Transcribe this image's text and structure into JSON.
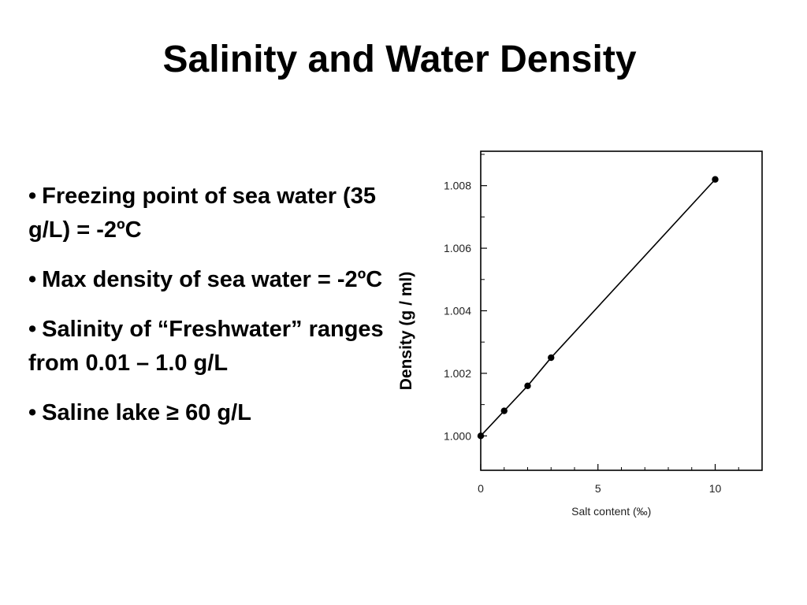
{
  "slide": {
    "title": "Salinity and Water Density",
    "bullets": [
      "Freezing point of sea water (35 g/L) = -2ºC",
      "Max density of sea water = -2ºC",
      "Salinity of “Freshwater” ranges from 0.01 – 1.0 g/L",
      "Saline lake ≥ 60 g/L"
    ],
    "bullet_marker": "•"
  },
  "chart_data": {
    "type": "line",
    "title": "",
    "xlabel": "Salt content (‰)",
    "ylabel": "Density (g / ml)",
    "x_ticks": [
      "0",
      "5",
      "10"
    ],
    "y_ticks": [
      "1.000",
      "1.002",
      "1.004",
      "1.006",
      "1.008"
    ],
    "xlim": [
      0,
      12
    ],
    "ylim": [
      0.9989,
      1.0091
    ],
    "series": [
      {
        "x": [
          0,
          1,
          2,
          3,
          10
        ],
        "y": [
          1.0,
          1.0008,
          1.0016,
          1.0025,
          1.0082
        ]
      }
    ],
    "grid": false,
    "legend": "none",
    "colors": {
      "line": "#000000",
      "frame": "#000000"
    }
  }
}
